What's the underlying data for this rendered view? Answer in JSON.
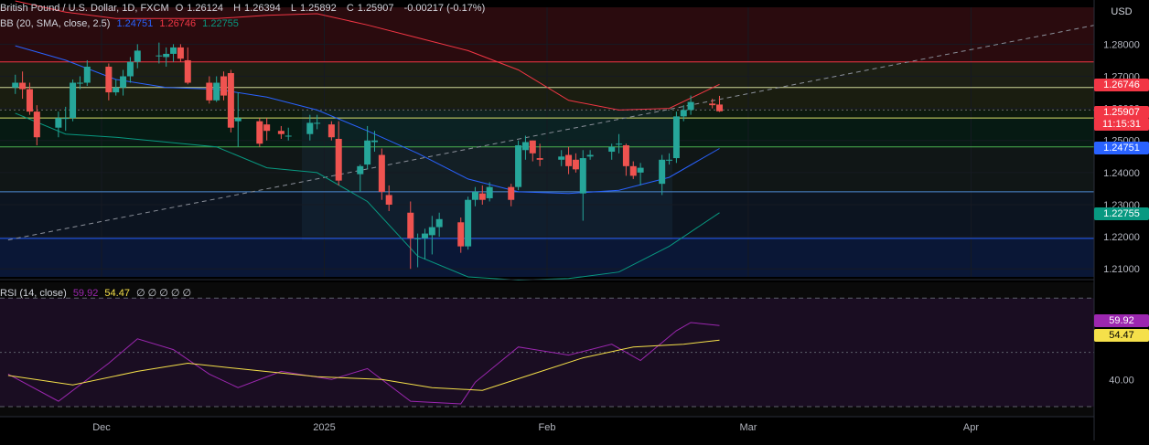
{
  "header": {
    "symbol": "British Pound / U.S. Dollar, 1D, FXCM",
    "ohlc": [
      {
        "label": "O",
        "value": "1.26124"
      },
      {
        "label": "H",
        "value": "1.26394"
      },
      {
        "label": "L",
        "value": "1.25892"
      },
      {
        "label": "C",
        "value": "1.25907"
      }
    ],
    "change": "-0.00217 (-0.17%)",
    "currency": "USD"
  },
  "bb_legend": {
    "label": "BB (20, SMA, close, 2.5)",
    "basis": "1.24751",
    "upper": "1.26746",
    "lower": "1.22755"
  },
  "rsi_legend": {
    "label": "RSI (14, close)",
    "rsi": "59.92",
    "ma": "54.47",
    "extra": "∅ ∅ ∅ ∅ ∅"
  },
  "price_tags": {
    "upper": "1.26746",
    "close": "1.25907",
    "countdown": "11:15:31",
    "basis": "1.24751",
    "lower": "1.22755",
    "rsi": "59.92",
    "rsi_ma": "54.47"
  },
  "colors": {
    "up": "#26a69a",
    "down": "#ef5350",
    "bb_upper": "#f23645",
    "bb_basis": "#2962ff",
    "bb_lower": "#089981",
    "rsi": "#9c27b0",
    "rsi_ma": "#f5e04a"
  },
  "chart_data": [
    {
      "type": "candlestick",
      "y_ticks": [
        1.28,
        1.27,
        1.26,
        1.25,
        1.24,
        1.23,
        1.22,
        1.21
      ],
      "ylim": [
        1.2075,
        1.2915
      ],
      "x_labels": [
        "Dec",
        "2025",
        "Feb",
        "Mar",
        "Apr"
      ],
      "x_label_dates": [
        "2024-12-01",
        "2025-01-01",
        "2025-02-01",
        "2025-03-01",
        "2025-04-01"
      ],
      "candles": [
        {
          "d": "2024-11-19",
          "o": 1.2665,
          "h": 1.2705,
          "l": 1.2645,
          "c": 1.268
        },
        {
          "d": "2024-11-20",
          "o": 1.268,
          "h": 1.2715,
          "l": 1.263,
          "c": 1.266
        },
        {
          "d": "2024-11-21",
          "o": 1.266,
          "h": 1.268,
          "l": 1.258,
          "c": 1.259
        },
        {
          "d": "2024-11-22",
          "o": 1.259,
          "h": 1.261,
          "l": 1.2485,
          "c": 1.251
        },
        {
          "d": "2024-11-25",
          "o": 1.254,
          "h": 1.259,
          "l": 1.251,
          "c": 1.257
        },
        {
          "d": "2024-11-26",
          "o": 1.257,
          "h": 1.2605,
          "l": 1.253,
          "c": 1.257
        },
        {
          "d": "2024-11-27",
          "o": 1.257,
          "h": 1.269,
          "l": 1.256,
          "c": 1.268
        },
        {
          "d": "2024-11-28",
          "o": 1.268,
          "h": 1.27,
          "l": 1.266,
          "c": 1.268
        },
        {
          "d": "2024-11-29",
          "o": 1.268,
          "h": 1.275,
          "l": 1.267,
          "c": 1.273
        },
        {
          "d": "2024-12-02",
          "o": 1.273,
          "h": 1.274,
          "l": 1.2625,
          "c": 1.265
        },
        {
          "d": "2024-12-03",
          "o": 1.265,
          "h": 1.269,
          "l": 1.264,
          "c": 1.2665
        },
        {
          "d": "2024-12-04",
          "o": 1.2665,
          "h": 1.272,
          "l": 1.264,
          "c": 1.27
        },
        {
          "d": "2024-12-05",
          "o": 1.27,
          "h": 1.276,
          "l": 1.268,
          "c": 1.2745
        },
        {
          "d": "2024-12-06",
          "o": 1.2745,
          "h": 1.28,
          "l": 1.2725,
          "c": 1.278
        },
        {
          "d": "2024-12-09",
          "o": 1.2765,
          "h": 1.2805,
          "l": 1.274,
          "c": 1.2765
        },
        {
          "d": "2024-12-10",
          "o": 1.276,
          "h": 1.279,
          "l": 1.273,
          "c": 1.277
        },
        {
          "d": "2024-12-11",
          "o": 1.277,
          "h": 1.28,
          "l": 1.2745,
          "c": 1.279
        },
        {
          "d": "2024-12-12",
          "o": 1.279,
          "h": 1.28,
          "l": 1.2745,
          "c": 1.2755
        },
        {
          "d": "2024-12-13",
          "o": 1.275,
          "h": 1.279,
          "l": 1.2675,
          "c": 1.268
        },
        {
          "d": "2024-12-16",
          "o": 1.268,
          "h": 1.27,
          "l": 1.2615,
          "c": 1.2625
        },
        {
          "d": "2024-12-17",
          "o": 1.2625,
          "h": 1.27,
          "l": 1.262,
          "c": 1.268
        },
        {
          "d": "2024-12-18",
          "o": 1.27,
          "h": 1.2715,
          "l": 1.2625,
          "c": 1.264
        },
        {
          "d": "2024-12-19",
          "o": 1.271,
          "h": 1.272,
          "l": 1.2525,
          "c": 1.254
        },
        {
          "d": "2024-12-20",
          "o": 1.256,
          "h": 1.265,
          "l": 1.248,
          "c": 1.257
        },
        {
          "d": "2024-12-23",
          "o": 1.256,
          "h": 1.257,
          "l": 1.248,
          "c": 1.249
        },
        {
          "d": "2024-12-24",
          "o": 1.255,
          "h": 1.257,
          "l": 1.25,
          "c": 1.253
        },
        {
          "d": "2024-12-26",
          "o": 1.253,
          "h": 1.2545,
          "l": 1.2505,
          "c": 1.252
        },
        {
          "d": "2024-12-27",
          "o": 1.2515,
          "h": 1.254,
          "l": 1.25,
          "c": 1.2515
        },
        {
          "d": "2024-12-30",
          "o": 1.252,
          "h": 1.258,
          "l": 1.25,
          "c": 1.2555
        },
        {
          "d": "2024-12-31",
          "o": 1.2555,
          "h": 1.258,
          "l": 1.2535,
          "c": 1.2555
        },
        {
          "d": "2025-01-02",
          "o": 1.255,
          "h": 1.256,
          "l": 1.25,
          "c": 1.251
        },
        {
          "d": "2025-01-03",
          "o": 1.2505,
          "h": 1.256,
          "l": 1.236,
          "c": 1.2375
        },
        {
          "d": "2025-01-06",
          "o": 1.2395,
          "h": 1.2425,
          "l": 1.234,
          "c": 1.242
        },
        {
          "d": "2025-01-07",
          "o": 1.2425,
          "h": 1.2545,
          "l": 1.241,
          "c": 1.25
        },
        {
          "d": "2025-01-08",
          "o": 1.2495,
          "h": 1.253,
          "l": 1.2465,
          "c": 1.25
        },
        {
          "d": "2025-01-09",
          "o": 1.2455,
          "h": 1.2475,
          "l": 1.2315,
          "c": 1.234
        },
        {
          "d": "2025-01-10",
          "o": 1.233,
          "h": 1.236,
          "l": 1.228,
          "c": 1.23
        },
        {
          "d": "2025-01-13",
          "o": 1.2275,
          "h": 1.231,
          "l": 1.21,
          "c": 1.2195
        },
        {
          "d": "2025-01-14",
          "o": 1.2195,
          "h": 1.221,
          "l": 1.2105,
          "c": 1.2195
        },
        {
          "d": "2025-01-15",
          "o": 1.2195,
          "h": 1.2225,
          "l": 1.213,
          "c": 1.221
        },
        {
          "d": "2025-01-16",
          "o": 1.2205,
          "h": 1.2265,
          "l": 1.2145,
          "c": 1.223
        },
        {
          "d": "2025-01-17",
          "o": 1.223,
          "h": 1.2275,
          "l": 1.22,
          "c": 1.2255
        },
        {
          "d": "2025-01-20",
          "o": 1.2245,
          "h": 1.226,
          "l": 1.215,
          "c": 1.217
        },
        {
          "d": "2025-01-21",
          "o": 1.217,
          "h": 1.2325,
          "l": 1.216,
          "c": 1.2315
        },
        {
          "d": "2025-01-22",
          "o": 1.2315,
          "h": 1.2355,
          "l": 1.2295,
          "c": 1.234
        },
        {
          "d": "2025-01-23",
          "o": 1.2335,
          "h": 1.236,
          "l": 1.23,
          "c": 1.2315
        },
        {
          "d": "2025-01-24",
          "o": 1.232,
          "h": 1.237,
          "l": 1.231,
          "c": 1.2355
        },
        {
          "d": "2025-01-27",
          "o": 1.2355,
          "h": 1.2365,
          "l": 1.2295,
          "c": 1.2315
        },
        {
          "d": "2025-01-28",
          "o": 1.2355,
          "h": 1.25,
          "l": 1.2345,
          "c": 1.2485
        },
        {
          "d": "2025-01-29",
          "o": 1.247,
          "h": 1.2515,
          "l": 1.244,
          "c": 1.2495
        },
        {
          "d": "2025-01-30",
          "o": 1.25,
          "h": 1.25,
          "l": 1.2435,
          "c": 1.246
        },
        {
          "d": "2025-01-31",
          "o": 1.2445,
          "h": 1.249,
          "l": 1.242,
          "c": 1.244
        },
        {
          "d": "2025-02-03",
          "o": 1.244,
          "h": 1.247,
          "l": 1.242,
          "c": 1.245
        },
        {
          "d": "2025-02-04",
          "o": 1.2455,
          "h": 1.248,
          "l": 1.2395,
          "c": 1.242
        },
        {
          "d": "2025-02-05",
          "o": 1.244,
          "h": 1.246,
          "l": 1.24,
          "c": 1.241
        },
        {
          "d": "2025-02-06",
          "o": 1.2335,
          "h": 1.247,
          "l": 1.225,
          "c": 1.2445
        },
        {
          "d": "2025-02-07",
          "o": 1.245,
          "h": 1.247,
          "l": 1.244,
          "c": 1.2455
        },
        {
          "d": "2025-02-10",
          "o": 1.2465,
          "h": 1.249,
          "l": 1.244,
          "c": 1.248
        },
        {
          "d": "2025-02-11",
          "o": 1.249,
          "h": 1.252,
          "l": 1.246,
          "c": 1.249
        },
        {
          "d": "2025-02-12",
          "o": 1.2485,
          "h": 1.249,
          "l": 1.239,
          "c": 1.242
        },
        {
          "d": "2025-02-13",
          "o": 1.242,
          "h": 1.2435,
          "l": 1.238,
          "c": 1.239
        },
        {
          "d": "2025-02-14",
          "o": 1.24,
          "h": 1.243,
          "l": 1.236,
          "c": 1.2415
        },
        {
          "d": "2025-02-17",
          "o": 1.2365,
          "h": 1.2455,
          "l": 1.233,
          "c": 1.244
        },
        {
          "d": "2025-02-18",
          "o": 1.244,
          "h": 1.246,
          "l": 1.2425,
          "c": 1.244
        },
        {
          "d": "2025-02-19",
          "o": 1.2445,
          "h": 1.259,
          "l": 1.243,
          "c": 1.2575
        },
        {
          "d": "2025-02-20",
          "o": 1.2575,
          "h": 1.261,
          "l": 1.256,
          "c": 1.2595
        },
        {
          "d": "2025-02-21",
          "o": 1.2595,
          "h": 1.264,
          "l": 1.258,
          "c": 1.262
        },
        {
          "d": "2025-02-24",
          "o": 1.2615,
          "h": 1.263,
          "l": 1.26,
          "c": 1.261
        },
        {
          "d": "2025-02-25",
          "o": 1.2612,
          "h": 1.2639,
          "l": 1.2589,
          "c": 1.2591
        }
      ],
      "bollinger": {
        "upper": [
          {
            "d": "2024-11-19",
            "y": 1.2935
          },
          {
            "d": "2024-11-26",
            "y": 1.29
          },
          {
            "d": "2024-12-03",
            "y": 1.288
          },
          {
            "d": "2024-12-10",
            "y": 1.288
          },
          {
            "d": "2024-12-17",
            "y": 1.288
          },
          {
            "d": "2024-12-24",
            "y": 1.289
          },
          {
            "d": "2024-12-31",
            "y": 1.2895
          },
          {
            "d": "2025-01-07",
            "y": 1.286
          },
          {
            "d": "2025-01-14",
            "y": 1.282
          },
          {
            "d": "2025-01-21",
            "y": 1.278
          },
          {
            "d": "2025-01-28",
            "y": 1.272
          },
          {
            "d": "2025-02-04",
            "y": 1.2625
          },
          {
            "d": "2025-02-11",
            "y": 1.2595
          },
          {
            "d": "2025-02-18",
            "y": 1.26
          },
          {
            "d": "2025-02-25",
            "y": 1.2675
          }
        ],
        "basis": [
          {
            "d": "2024-11-19",
            "y": 1.2795
          },
          {
            "d": "2024-11-26",
            "y": 1.275
          },
          {
            "d": "2024-12-03",
            "y": 1.269
          },
          {
            "d": "2024-12-10",
            "y": 1.2665
          },
          {
            "d": "2024-12-17",
            "y": 1.266
          },
          {
            "d": "2024-12-24",
            "y": 1.2635
          },
          {
            "d": "2024-12-31",
            "y": 1.2595
          },
          {
            "d": "2025-01-07",
            "y": 1.253
          },
          {
            "d": "2025-01-14",
            "y": 1.246
          },
          {
            "d": "2025-01-21",
            "y": 1.238
          },
          {
            "d": "2025-01-28",
            "y": 1.234
          },
          {
            "d": "2025-02-04",
            "y": 1.2335
          },
          {
            "d": "2025-02-11",
            "y": 1.2345
          },
          {
            "d": "2025-02-18",
            "y": 1.2385
          },
          {
            "d": "2025-02-25",
            "y": 1.2475
          }
        ],
        "lower": [
          {
            "d": "2024-11-19",
            "y": 1.2585
          },
          {
            "d": "2024-11-26",
            "y": 1.252
          },
          {
            "d": "2024-12-03",
            "y": 1.251
          },
          {
            "d": "2024-12-10",
            "y": 1.2495
          },
          {
            "d": "2024-12-17",
            "y": 1.248
          },
          {
            "d": "2024-12-24",
            "y": 1.2415
          },
          {
            "d": "2024-12-31",
            "y": 1.24
          },
          {
            "d": "2025-01-07",
            "y": 1.231
          },
          {
            "d": "2025-01-14",
            "y": 1.214
          },
          {
            "d": "2025-01-21",
            "y": 1.2075
          },
          {
            "d": "2025-01-28",
            "y": 1.2065
          },
          {
            "d": "2025-02-04",
            "y": 1.207
          },
          {
            "d": "2025-02-11",
            "y": 1.209
          },
          {
            "d": "2025-02-18",
            "y": 1.217
          },
          {
            "d": "2025-02-25",
            "y": 1.2275
          }
        ]
      },
      "horizontal_levels": [
        {
          "price": 1.2745,
          "color": "#f23645"
        },
        {
          "price": 1.2665,
          "color": "#cfd89a"
        },
        {
          "price": 1.2595,
          "color": "#6a6a6a",
          "dashed": true
        },
        {
          "price": 1.257,
          "color": "#d8e06a"
        },
        {
          "price": 1.248,
          "color": "#4caf50"
        },
        {
          "price": 1.234,
          "color": "#4c8bd6"
        },
        {
          "price": 1.2195,
          "color": "#2962ff"
        }
      ],
      "trendline": {
        "from": {
          "d": "2024-11-18",
          "y": 1.219
        },
        "to": {
          "d": "2025-04-24",
          "y": 1.2885
        }
      }
    },
    {
      "type": "line",
      "y_ticks": [
        40
      ],
      "levels": [
        70,
        50,
        30
      ],
      "ylim": [
        26.3,
        75.8
      ],
      "series": [
        {
          "name": "RSI",
          "points": [
            {
              "d": "2024-11-18",
              "y": 42
            },
            {
              "d": "2024-11-25",
              "y": 32
            },
            {
              "d": "2024-12-02",
              "y": 46
            },
            {
              "d": "2024-12-06",
              "y": 55
            },
            {
              "d": "2024-12-11",
              "y": 51
            },
            {
              "d": "2024-12-16",
              "y": 42
            },
            {
              "d": "2024-12-20",
              "y": 37
            },
            {
              "d": "2024-12-26",
              "y": 43
            },
            {
              "d": "2025-01-02",
              "y": 40
            },
            {
              "d": "2025-01-07",
              "y": 44
            },
            {
              "d": "2025-01-13",
              "y": 32
            },
            {
              "d": "2025-01-20",
              "y": 31
            },
            {
              "d": "2025-01-22",
              "y": 39
            },
            {
              "d": "2025-01-28",
              "y": 52
            },
            {
              "d": "2025-02-04",
              "y": 49
            },
            {
              "d": "2025-02-10",
              "y": 53
            },
            {
              "d": "2025-02-14",
              "y": 47
            },
            {
              "d": "2025-02-19",
              "y": 58
            },
            {
              "d": "2025-02-21",
              "y": 61
            },
            {
              "d": "2025-02-25",
              "y": 59.92
            }
          ]
        },
        {
          "name": "RSI-based MA",
          "points": [
            {
              "d": "2024-11-18",
              "y": 41.5
            },
            {
              "d": "2024-11-27",
              "y": 38
            },
            {
              "d": "2024-12-06",
              "y": 43
            },
            {
              "d": "2024-12-13",
              "y": 46
            },
            {
              "d": "2024-12-20",
              "y": 44
            },
            {
              "d": "2024-12-31",
              "y": 41
            },
            {
              "d": "2025-01-09",
              "y": 40
            },
            {
              "d": "2025-01-16",
              "y": 37
            },
            {
              "d": "2025-01-23",
              "y": 36
            },
            {
              "d": "2025-01-30",
              "y": 42
            },
            {
              "d": "2025-02-06",
              "y": 48
            },
            {
              "d": "2025-02-13",
              "y": 52
            },
            {
              "d": "2025-02-20",
              "y": 53
            },
            {
              "d": "2025-02-25",
              "y": 54.47
            }
          ]
        }
      ]
    }
  ]
}
